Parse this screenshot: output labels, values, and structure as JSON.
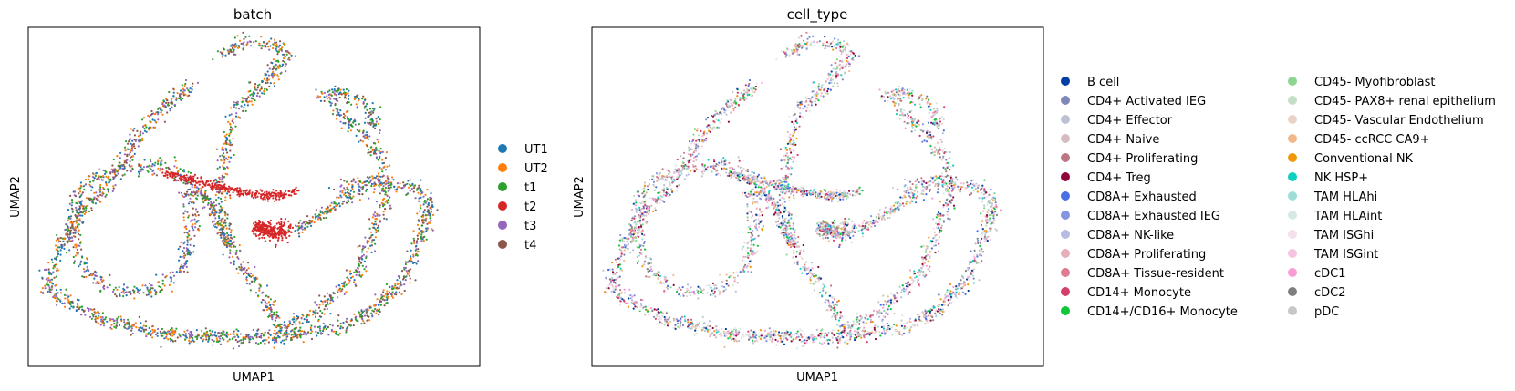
{
  "chart_data": [
    {
      "type": "scatter",
      "title": "batch",
      "xlabel": "UMAP1",
      "ylabel": "UMAP2",
      "legend_position": "right",
      "legend": [
        {
          "label": "UT1",
          "color": "#1f77b4"
        },
        {
          "label": "UT2",
          "color": "#ff7f0e"
        },
        {
          "label": "t1",
          "color": "#2ca02c"
        },
        {
          "label": "t2",
          "color": "#d62728"
        },
        {
          "label": "t3",
          "color": "#9467bd"
        },
        {
          "label": "t4",
          "color": "#8c564b"
        }
      ]
    },
    {
      "type": "scatter",
      "title": "cell_type",
      "xlabel": "UMAP1",
      "ylabel": "UMAP2",
      "legend_position": "right",
      "legend": [
        {
          "label": "B cell",
          "color": "#023fa5"
        },
        {
          "label": "CD4+ Activated IEG",
          "color": "#7d87b9"
        },
        {
          "label": "CD4+ Effector",
          "color": "#bec1d4"
        },
        {
          "label": "CD4+ Naive",
          "color": "#d6bcc0"
        },
        {
          "label": "CD4+ Proliferating",
          "color": "#bb7784"
        },
        {
          "label": "CD4+ Treg",
          "color": "#8e063b"
        },
        {
          "label": "CD8A+ Exhausted",
          "color": "#4a6fe3"
        },
        {
          "label": "CD8A+ Exhausted IEG",
          "color": "#8595e1"
        },
        {
          "label": "CD8A+ NK-like",
          "color": "#b5bbe3"
        },
        {
          "label": "CD8A+ Proliferating",
          "color": "#e6afb9"
        },
        {
          "label": "CD8A+ Tissue-resident",
          "color": "#e07b91"
        },
        {
          "label": "CD14+ Monocyte",
          "color": "#d33f6a"
        },
        {
          "label": "CD14+/CD16+ Monocyte",
          "color": "#11c638"
        },
        {
          "label": "CD45- Myofibroblast",
          "color": "#8dd593"
        },
        {
          "label": "CD45- PAX8+ renal epithelium",
          "color": "#c6dec7"
        },
        {
          "label": "CD45- Vascular Endothelium",
          "color": "#ead3c6"
        },
        {
          "label": "CD45- ccRCC CA9+",
          "color": "#f0b98d"
        },
        {
          "label": "Conventional NK",
          "color": "#ef9708"
        },
        {
          "label": "NK HSP+",
          "color": "#0fcfc0"
        },
        {
          "label": "TAM HLAhi",
          "color": "#9cded6"
        },
        {
          "label": "TAM HLAint",
          "color": "#d5eae7"
        },
        {
          "label": "TAM ISGhi",
          "color": "#f3e1eb"
        },
        {
          "label": "TAM ISGint",
          "color": "#f6c4e1"
        },
        {
          "label": "cDC1",
          "color": "#f79cd4"
        },
        {
          "label": "cDC2",
          "color": "#7f7f7f"
        },
        {
          "label": "pDC",
          "color": "#c7c7c7"
        }
      ]
    }
  ]
}
